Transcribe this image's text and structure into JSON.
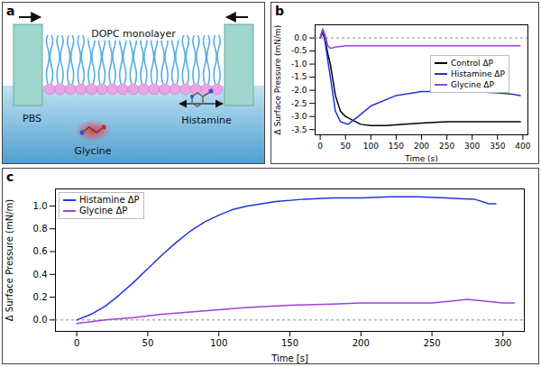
{
  "diagram": {
    "panel": "a",
    "labels": {
      "monolayer": "DOPC monolayer",
      "histamine": "Histamine",
      "buffer": "PBS",
      "glycine": "Glycine"
    }
  },
  "chart_data": [
    {
      "panel": "b",
      "type": "line",
      "x_label": "Time (s)",
      "y_label": "Δ Surface Pressure (mN/m)",
      "xlim": [
        -10,
        410
      ],
      "xticks": [
        0,
        50,
        100,
        150,
        200,
        250,
        300,
        350,
        400
      ],
      "ylim": [
        -3.7,
        0.5
      ],
      "yticks": [
        {
          "value": 0,
          "label": "0.0"
        },
        {
          "value": -0.5,
          "label": "-0.5"
        },
        {
          "value": -1,
          "label": "-1.0"
        },
        {
          "value": -1.5,
          "label": "-1.5"
        },
        {
          "value": -2,
          "label": "-2.0"
        },
        {
          "value": -2.5,
          "label": "-2.5"
        },
        {
          "value": -3,
          "label": "-3.0"
        },
        {
          "value": -3.5,
          "label": "-3.5"
        }
      ],
      "baseline": 0,
      "legend": "right",
      "series": [
        {
          "name": "Control ΔP",
          "color": "#000000",
          "x": [
            0,
            5,
            10,
            15,
            20,
            25,
            30,
            40,
            50,
            60,
            80,
            100,
            130,
            160,
            200,
            250,
            300,
            350,
            395
          ],
          "values": [
            0,
            0.2,
            -0.1,
            -0.6,
            -1.0,
            -1.6,
            -2.2,
            -2.8,
            -3.0,
            -3.1,
            -3.3,
            -3.35,
            -3.35,
            -3.3,
            -3.25,
            -3.2,
            -3.2,
            -3.2,
            -3.2
          ]
        },
        {
          "name": "Histamine ΔP",
          "color": "#2233dd",
          "x": [
            0,
            5,
            10,
            20,
            30,
            40,
            55,
            75,
            100,
            150,
            200,
            250,
            300,
            350,
            380,
            395
          ],
          "values": [
            0,
            0.3,
            -0.2,
            -1.5,
            -2.8,
            -3.2,
            -3.3,
            -3.0,
            -2.6,
            -2.2,
            -2.05,
            -2.05,
            -2.05,
            -2.1,
            -2.15,
            -2.2
          ]
        },
        {
          "name": "Glycine ΔP",
          "color": "#a040e0",
          "x": [
            0,
            5,
            10,
            15,
            20,
            30,
            50,
            100,
            200,
            300,
            395
          ],
          "values": [
            0,
            0.35,
            0.1,
            -0.3,
            -0.4,
            -0.35,
            -0.3,
            -0.3,
            -0.3,
            -0.3,
            -0.3
          ]
        }
      ]
    },
    {
      "panel": "c",
      "type": "line",
      "x_label": "Time [s]",
      "y_label": "Δ Surface Pressure (mN/m)",
      "xlim": [
        -15,
        315
      ],
      "xticks": [
        0,
        50,
        100,
        150,
        200,
        250,
        300
      ],
      "ylim": [
        -0.1,
        1.15
      ],
      "yticks": [
        {
          "value": 0,
          "label": "0.0"
        },
        {
          "value": 0.2,
          "label": "0.2"
        },
        {
          "value": 0.4,
          "label": "0.4"
        },
        {
          "value": 0.6,
          "label": "0.6"
        },
        {
          "value": 0.8,
          "label": "0.8"
        },
        {
          "value": 1,
          "label": "1.0"
        }
      ],
      "baseline": 0,
      "legend": "upper left",
      "series": [
        {
          "name": "Histamine ΔP",
          "color": "#2233dd",
          "x": [
            0,
            10,
            20,
            30,
            40,
            50,
            60,
            70,
            80,
            90,
            100,
            110,
            120,
            140,
            160,
            180,
            200,
            220,
            240,
            260,
            280,
            290,
            295
          ],
          "values": [
            0,
            0.05,
            0.12,
            0.22,
            0.33,
            0.45,
            0.57,
            0.68,
            0.78,
            0.86,
            0.92,
            0.97,
            1.0,
            1.04,
            1.06,
            1.07,
            1.07,
            1.08,
            1.08,
            1.07,
            1.06,
            1.02,
            1.02
          ]
        },
        {
          "name": "Glycine ΔP",
          "color": "#a040e0",
          "x": [
            0,
            20,
            40,
            60,
            80,
            100,
            120,
            150,
            180,
            200,
            250,
            275,
            300,
            308
          ],
          "values": [
            -0.03,
            0,
            0.02,
            0.05,
            0.07,
            0.09,
            0.11,
            0.13,
            0.14,
            0.15,
            0.15,
            0.18,
            0.15,
            0.15
          ]
        }
      ]
    }
  ]
}
